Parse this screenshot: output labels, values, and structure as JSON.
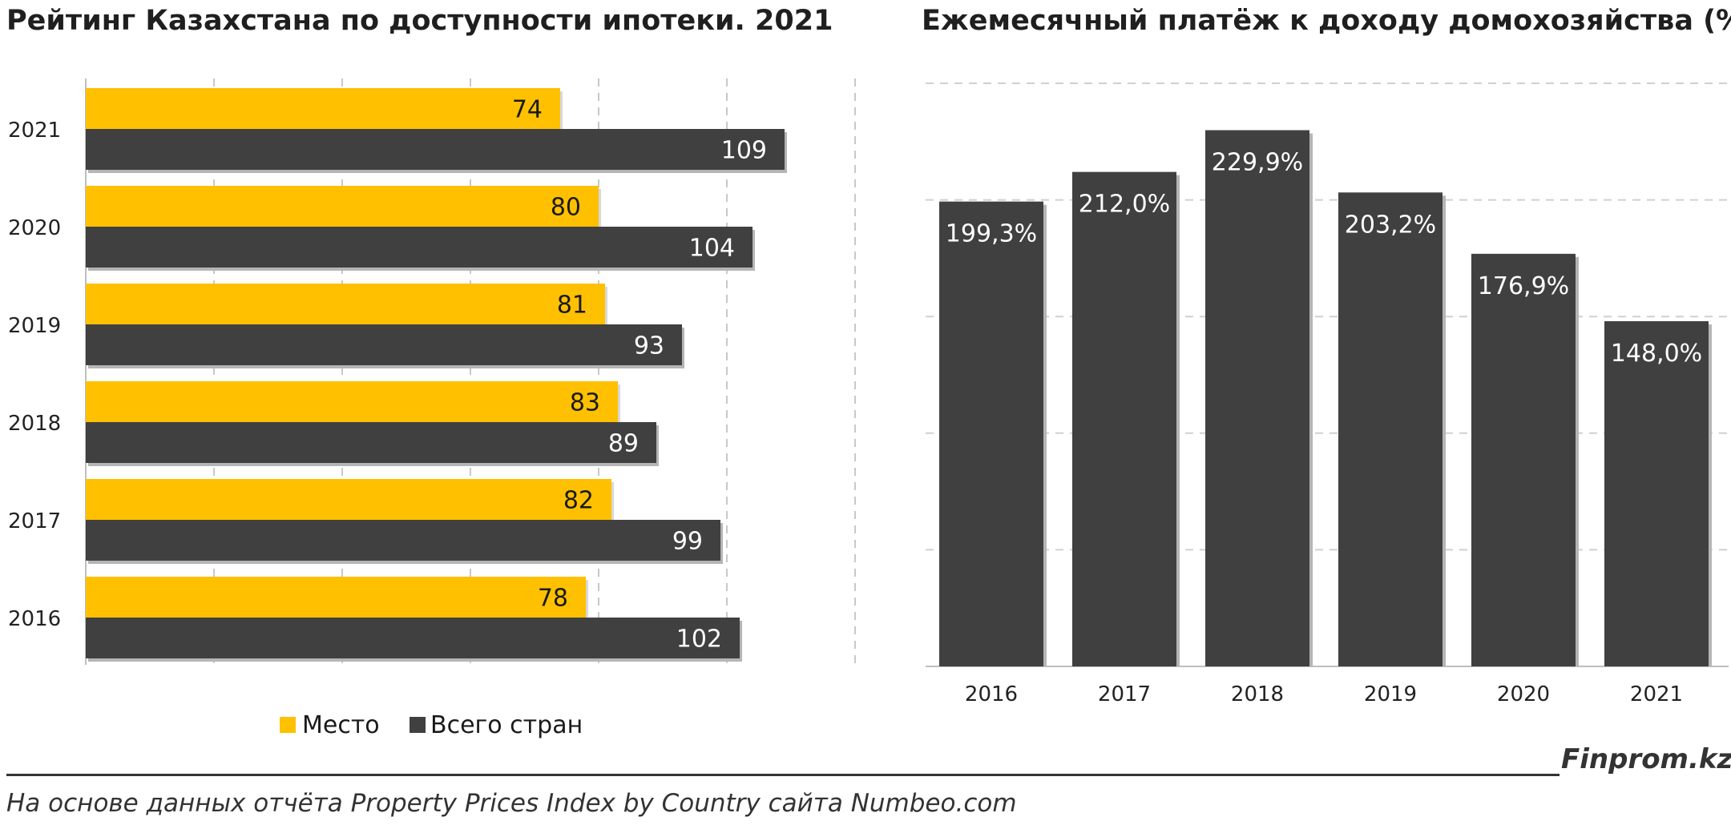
{
  "titles": {
    "left": "Рейтинг Казахстана по доступности ипотеки. 2021",
    "right": "Ежемесячный платёж к доходу домохозяйства (%)"
  },
  "footer": {
    "brand": "Finprom.kz",
    "source": "На основе данных отчёта Property Prices Index by Country сайта Numbeo.com"
  },
  "colors": {
    "yellow": "#FFC000",
    "dark": "#404040"
  },
  "chart_data": [
    {
      "type": "bar",
      "orientation": "horizontal",
      "title": "Рейтинг Казахстана по доступности ипотеки. 2021",
      "categories": [
        "2021",
        "2020",
        "2019",
        "2018",
        "2017",
        "2016"
      ],
      "series": [
        {
          "name": "Место",
          "values": [
            74,
            80,
            81,
            83,
            82,
            78
          ],
          "color": "#FFC000"
        },
        {
          "name": "Всего стран",
          "values": [
            109,
            104,
            93,
            89,
            99,
            102
          ],
          "color": "#404040"
        }
      ],
      "xlim": [
        0,
        120
      ],
      "grid": true,
      "legend": "bottom"
    },
    {
      "type": "bar",
      "title": "Ежемесячный платёж к доходу домохозяйства (%)",
      "categories": [
        "2016",
        "2017",
        "2018",
        "2019",
        "2020",
        "2021"
      ],
      "values": [
        199.3,
        212.0,
        229.9,
        203.2,
        176.9,
        148.0
      ],
      "labels": [
        "199,3%",
        "212,0%",
        "229,9%",
        "203,2%",
        "176,9%",
        "148,0%"
      ],
      "ylim": [
        0,
        250
      ],
      "grid": true,
      "color": "#404040"
    }
  ]
}
